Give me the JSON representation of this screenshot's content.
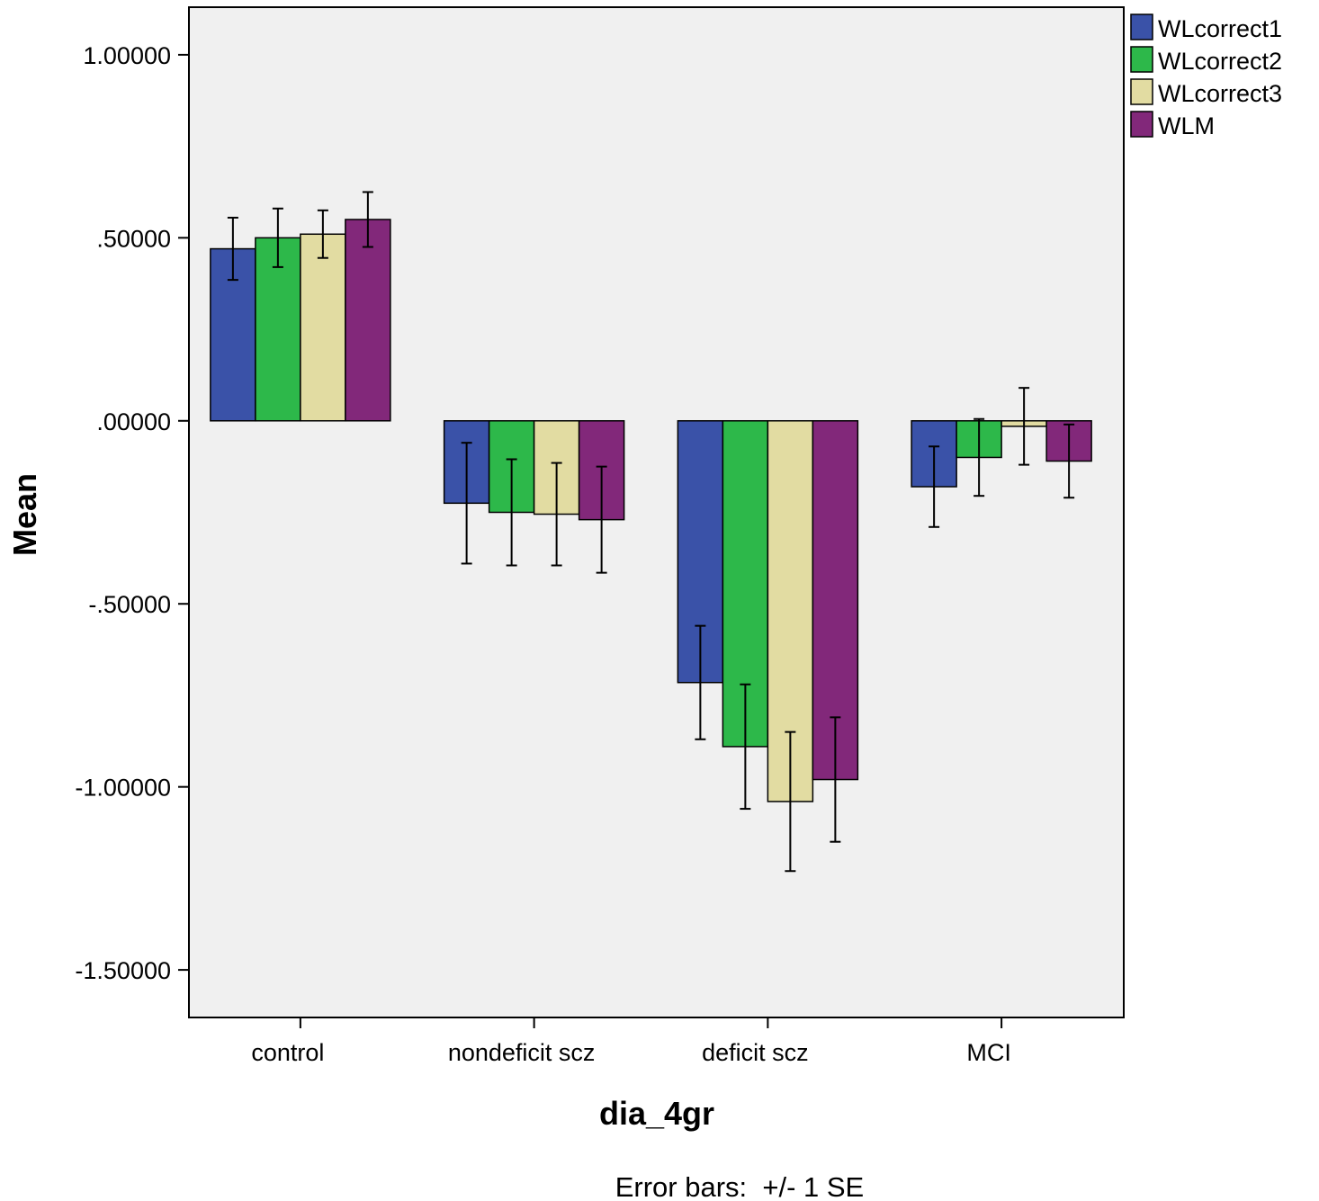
{
  "chart_data": {
    "type": "bar",
    "categories": [
      "control",
      "nondeficit scz",
      "deficit scz",
      "MCI"
    ],
    "series": [
      {
        "name": "WLcorrect1",
        "color": "#3a52a8",
        "values": [
          0.47,
          -0.225,
          -0.715,
          -0.18
        ],
        "se": [
          0.085,
          0.165,
          0.155,
          0.11
        ]
      },
      {
        "name": "WLcorrect2",
        "color": "#2db84a",
        "values": [
          0.5,
          -0.25,
          -0.89,
          -0.1
        ],
        "se": [
          0.08,
          0.145,
          0.17,
          0.105
        ]
      },
      {
        "name": "WLcorrect3",
        "color": "#e2dca2",
        "values": [
          0.51,
          -0.255,
          -1.04,
          -0.015
        ],
        "se": [
          0.065,
          0.14,
          0.19,
          0.105
        ]
      },
      {
        "name": "WLM",
        "color": "#82287a",
        "values": [
          0.55,
          -0.27,
          -0.98,
          -0.11
        ],
        "se": [
          0.075,
          0.145,
          0.17,
          0.1
        ]
      }
    ],
    "ylim": [
      -1.63,
      1.13
    ],
    "yticks": [
      1.0,
      0.5,
      0.0,
      -0.5,
      -1.0,
      -1.5
    ],
    "ytick_labels": [
      "1.00000",
      ".50000",
      ".00000",
      "-.50000",
      "-1.00000",
      "-1.50000"
    ],
    "xlabel": "dia_4gr",
    "ylabel": "Mean",
    "legend": {
      "position": "top-right"
    },
    "note": "Error bars:  +/- 1 SE",
    "plot_background": "#f0f0f0"
  }
}
